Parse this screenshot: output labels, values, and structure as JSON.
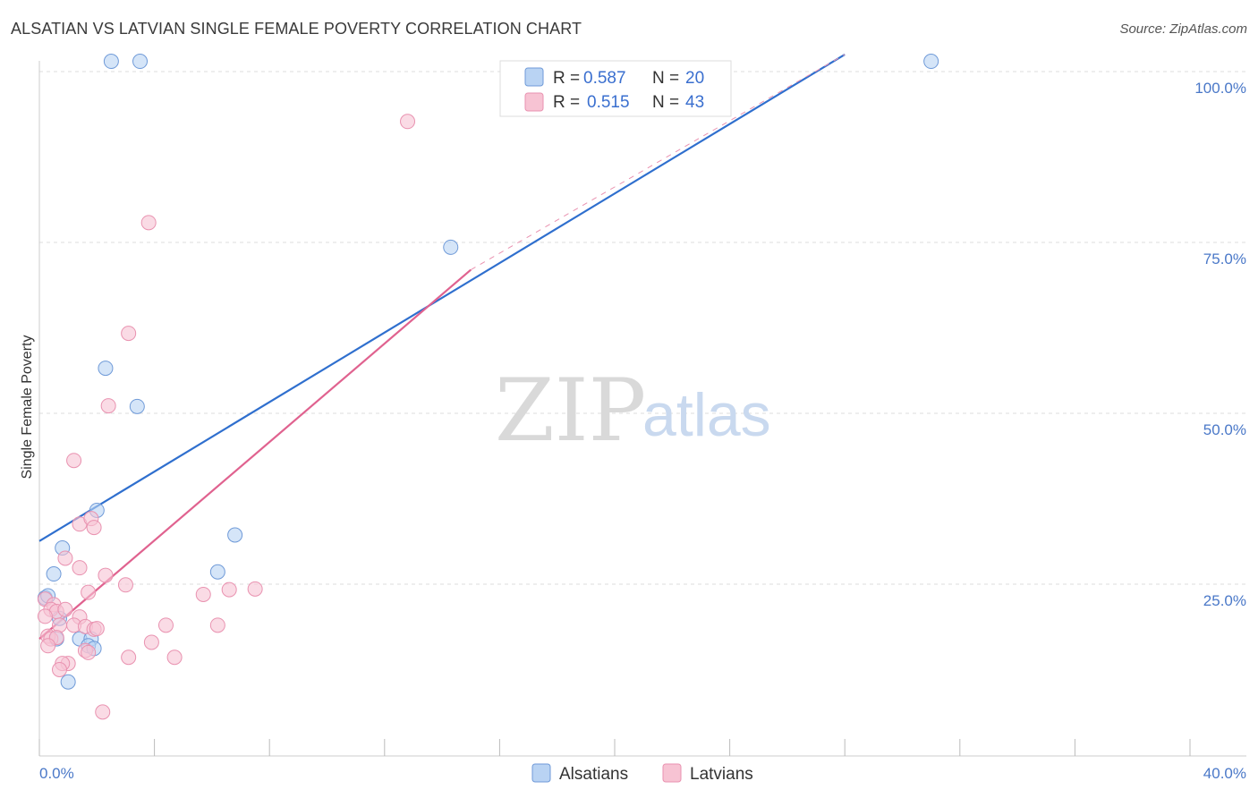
{
  "header": {
    "title": "ALSATIAN VS LATVIAN SINGLE FEMALE POVERTY CORRELATION CHART",
    "source": "Source: ZipAtlas.com"
  },
  "watermark": {
    "zip": "ZIP",
    "atlas": "atlas"
  },
  "colors": {
    "alsatians_fill": "#b9d3f3",
    "alsatians_stroke": "#6f9ad8",
    "alsatians_line": "#2f6fce",
    "latvians_fill": "#f7c3d3",
    "latvians_stroke": "#e992b0",
    "latvians_line": "#e0628f",
    "grid": "#dddddd",
    "tick_text": "#4a78c8"
  },
  "chart_data": {
    "type": "scatter",
    "title": "ALSATIAN VS LATVIAN SINGLE FEMALE POVERTY CORRELATION CHART",
    "xlabel": "",
    "ylabel": "Single Female Poverty",
    "xlim": [
      0,
      40
    ],
    "ylim": [
      0,
      105
    ],
    "x_tick_labels": [
      "0.0%",
      "40.0%"
    ],
    "y_ticks": [
      25,
      50,
      75,
      100
    ],
    "y_tick_labels": [
      "25.0%",
      "50.0%",
      "75.0%",
      "100.0%"
    ],
    "grid": true,
    "legend_position": "top-center",
    "series": [
      {
        "name": "Alsatians",
        "r_label": "R =",
        "r_value": "0.587",
        "n_label": "N =",
        "n_value": "20",
        "points": [
          [
            2.5,
            101.5
          ],
          [
            3.5,
            101.5
          ],
          [
            31.0,
            101.5
          ],
          [
            14.3,
            74.3
          ],
          [
            2.3,
            56.6
          ],
          [
            3.4,
            51.0
          ],
          [
            2.0,
            35.8
          ],
          [
            6.8,
            32.2
          ],
          [
            0.8,
            30.3
          ],
          [
            0.5,
            26.5
          ],
          [
            6.2,
            26.8
          ],
          [
            0.2,
            23.0
          ],
          [
            0.3,
            23.3
          ],
          [
            0.7,
            20.0
          ],
          [
            0.6,
            17.0
          ],
          [
            1.4,
            17.0
          ],
          [
            1.8,
            17.0
          ],
          [
            1.7,
            16.0
          ],
          [
            1.0,
            10.7
          ],
          [
            1.9,
            15.6
          ]
        ],
        "trend": {
          "x": [
            0,
            28
          ],
          "y": [
            31.3,
            102.5
          ],
          "extends_dashed_to": null
        }
      },
      {
        "name": "Latvians",
        "r_label": "R =",
        "r_value": "0.515",
        "n_label": "N =",
        "n_value": "43",
        "points": [
          [
            12.8,
            92.7
          ],
          [
            3.8,
            77.9
          ],
          [
            3.1,
            61.7
          ],
          [
            2.4,
            51.1
          ],
          [
            1.2,
            43.1
          ],
          [
            1.4,
            33.8
          ],
          [
            1.8,
            34.6
          ],
          [
            1.9,
            33.3
          ],
          [
            0.9,
            28.8
          ],
          [
            1.4,
            27.4
          ],
          [
            2.3,
            26.3
          ],
          [
            3.0,
            24.9
          ],
          [
            1.7,
            23.8
          ],
          [
            7.5,
            24.3
          ],
          [
            6.6,
            24.2
          ],
          [
            5.7,
            23.5
          ],
          [
            0.2,
            22.8
          ],
          [
            0.5,
            22.0
          ],
          [
            0.4,
            21.3
          ],
          [
            0.6,
            21.0
          ],
          [
            0.9,
            21.3
          ],
          [
            0.2,
            20.3
          ],
          [
            1.4,
            20.2
          ],
          [
            0.7,
            19.0
          ],
          [
            1.2,
            19.0
          ],
          [
            1.6,
            18.8
          ],
          [
            1.9,
            18.4
          ],
          [
            2.0,
            18.5
          ],
          [
            4.4,
            19.0
          ],
          [
            6.2,
            19.0
          ],
          [
            0.3,
            17.4
          ],
          [
            0.4,
            17.0
          ],
          [
            0.6,
            17.2
          ],
          [
            0.3,
            16.0
          ],
          [
            1.6,
            15.3
          ],
          [
            1.7,
            15.0
          ],
          [
            3.9,
            16.5
          ],
          [
            4.7,
            14.3
          ],
          [
            3.1,
            14.3
          ],
          [
            1.0,
            13.4
          ],
          [
            0.8,
            13.4
          ],
          [
            0.7,
            12.5
          ],
          [
            2.2,
            6.3
          ]
        ],
        "trend": {
          "x": [
            0,
            15
          ],
          "y": [
            17.0,
            71.0
          ],
          "dashed_x": [
            15,
            28
          ],
          "dashed_y": [
            71.0,
            102.5
          ]
        }
      }
    ]
  },
  "legend": {
    "rows": [
      {
        "r_label": "R =",
        "r_value": "0.587",
        "n_label": "N =",
        "n_value": "20"
      },
      {
        "r_label": "R =",
        "r_value": "0.515",
        "n_label": "N =",
        "n_value": "43"
      }
    ]
  },
  "bottom_legend": {
    "alsatians": "Alsatians",
    "latvians": "Latvians"
  }
}
